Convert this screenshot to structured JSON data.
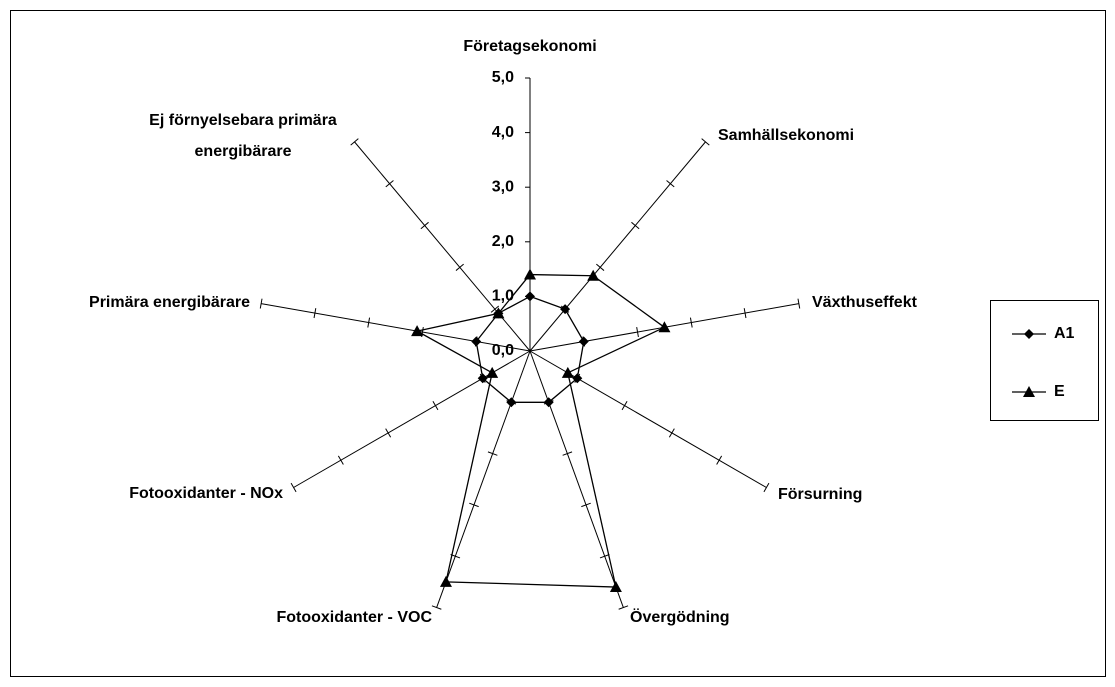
{
  "chart_data": {
    "type": "radar",
    "categories": [
      "Företagsekonomi",
      "Samhällsekonomi",
      "Växthuseffekt",
      "Försurning",
      "Övergödning",
      "Fotooxidanter - VOC",
      "Fotooxidanter - NOx",
      "Primära energibärare",
      "Ej förnyelsebara primära energibärare"
    ],
    "series": [
      {
        "name": "A1",
        "color": "#000000",
        "marker": "diamond",
        "values": [
          1.0,
          1.0,
          1.0,
          1.0,
          1.0,
          1.0,
          1.0,
          1.0,
          0.9
        ]
      },
      {
        "name": "E",
        "color": "#000000",
        "marker": "triangle",
        "values": [
          1.4,
          1.8,
          2.5,
          0.8,
          4.6,
          4.5,
          0.8,
          2.1,
          0.9
        ]
      }
    ],
    "rlim": [
      0,
      5
    ],
    "rticks": [
      {
        "value": 0,
        "label": "0,0"
      },
      {
        "value": 1,
        "label": "1,0"
      },
      {
        "value": 2,
        "label": "2,0"
      },
      {
        "value": 3,
        "label": "3,0"
      },
      {
        "value": 4,
        "label": "4,0"
      },
      {
        "value": 5,
        "label": "5,0"
      }
    ],
    "legend": "right"
  }
}
